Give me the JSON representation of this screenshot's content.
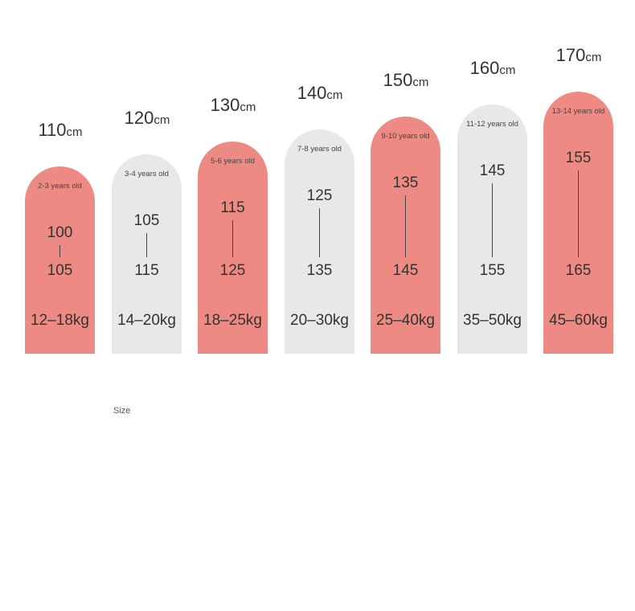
{
  "chart_data": {
    "type": "bar",
    "title": "",
    "xlabel": "Size",
    "categories": [
      "110cm",
      "120cm",
      "130cm",
      "140cm",
      "150cm",
      "160cm",
      "170cm"
    ],
    "unit": "cm",
    "series": [
      {
        "size": "110",
        "age": "2-3 years old",
        "height_min": "100",
        "height_max": "105",
        "weight": "12–18kg",
        "color": "#ee8a84"
      },
      {
        "size": "120",
        "age": "3-4 years old",
        "height_min": "105",
        "height_max": "115",
        "weight": "14–20kg",
        "color": "#e8e8e8"
      },
      {
        "size": "130",
        "age": "5-6 years old",
        "height_min": "115",
        "height_max": "125",
        "weight": "18–25kg",
        "color": "#ee8a84"
      },
      {
        "size": "140",
        "age": "7-8 years old",
        "height_min": "125",
        "height_max": "135",
        "weight": "20–30kg",
        "color": "#e8e8e8"
      },
      {
        "size": "150",
        "age": "9-10 years old",
        "height_min": "135",
        "height_max": "145",
        "weight": "25–40kg",
        "color": "#ee8a84"
      },
      {
        "size": "160",
        "age": "11-12 years old",
        "height_min": "145",
        "height_max": "155",
        "weight": "35–50kg",
        "color": "#e8e8e8"
      },
      {
        "size": "170",
        "age": "13-14 years old",
        "height_min": "155",
        "height_max": "165",
        "weight": "45–60kg",
        "color": "#ee8a84"
      }
    ]
  }
}
